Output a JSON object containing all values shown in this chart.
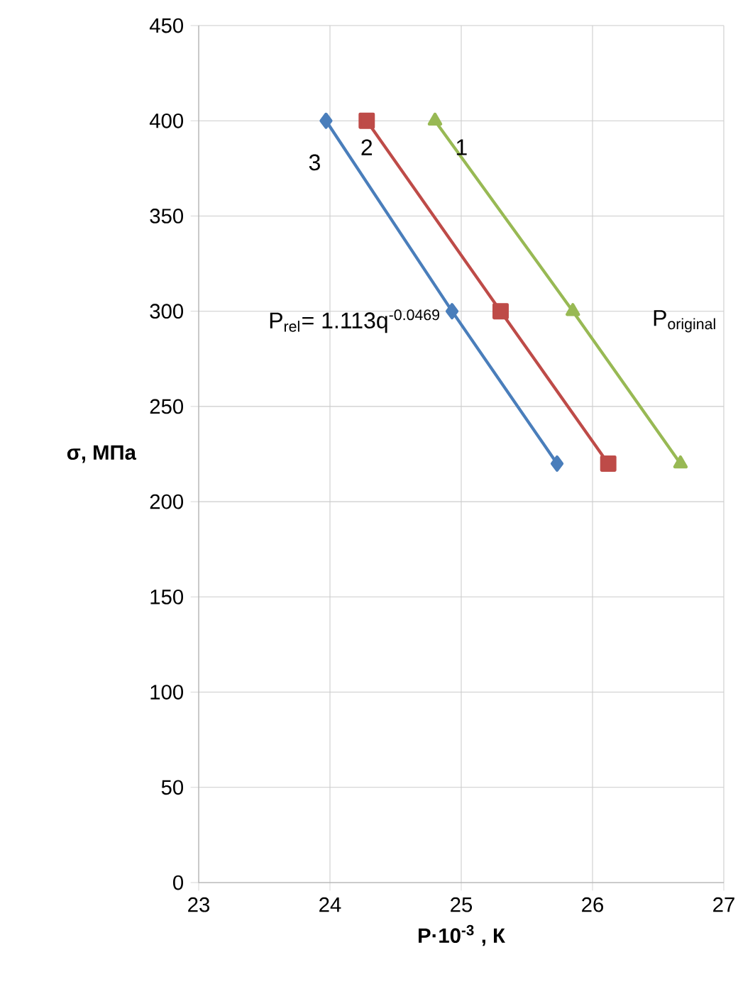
{
  "chart_data": {
    "type": "line",
    "xlabel": "P·10$^{-3}$ , К",
    "ylabel": "σ, МПа",
    "xlim": [
      23,
      27
    ],
    "xticks": [
      23,
      24,
      25,
      26,
      27
    ],
    "ylim": [
      0,
      450
    ],
    "yticks": [
      0,
      50,
      100,
      150,
      200,
      250,
      300,
      350,
      400,
      450
    ],
    "grid": true,
    "line_style": "solid",
    "series": [
      {
        "name": "1",
        "color": "#98b954",
        "marker": "triangle",
        "x": [
          24.8,
          25.85,
          26.67
        ],
        "values": [
          400,
          300,
          220
        ]
      },
      {
        "name": "2",
        "color": "#be4b48",
        "marker": "square",
        "x": [
          24.28,
          25.3,
          26.12
        ],
        "values": [
          400,
          300,
          220
        ]
      },
      {
        "name": "3",
        "color": "#4a7ebb",
        "marker": "diamond",
        "x": [
          23.97,
          24.93,
          25.73
        ],
        "values": [
          400,
          300,
          220
        ]
      }
    ],
    "annotations": [
      "P$_{rel}$= 1.113q$^{-0.0469}$",
      "P$_{original}$"
    ]
  }
}
